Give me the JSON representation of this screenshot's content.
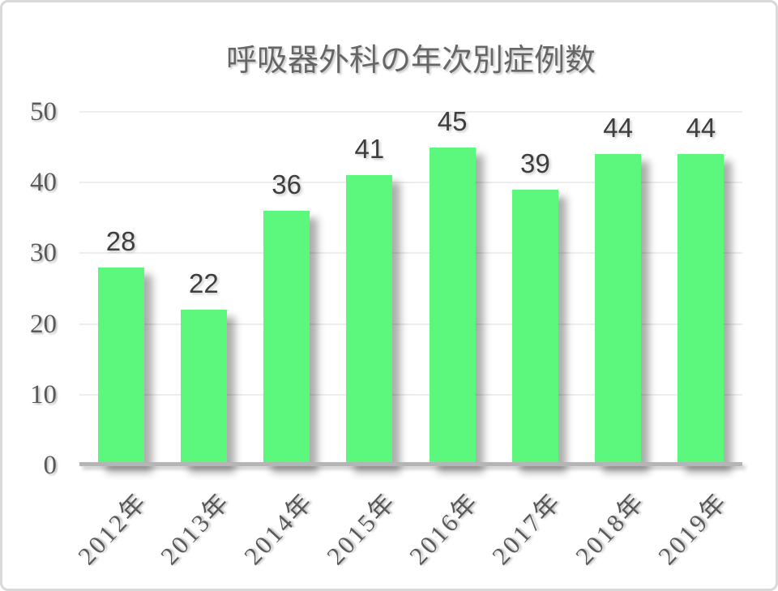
{
  "chart_data": {
    "type": "bar",
    "title": "呼吸器外科の年次別症例数",
    "categories": [
      "2012年",
      "2013年",
      "2014年",
      "2015年",
      "2016年",
      "2017年",
      "2018年",
      "2019年"
    ],
    "values": [
      28,
      22,
      36,
      41,
      45,
      39,
      44,
      44
    ],
    "xlabel": "",
    "ylabel": "",
    "ylim": [
      0,
      50
    ],
    "yticks": [
      0,
      10,
      20,
      30,
      40,
      50
    ],
    "grid": true,
    "legend_position": "none",
    "colors": {
      "bar": "#5bf87d",
      "bar_label_text": "#3e3e3e",
      "axis_text": "#595959",
      "title_text": "#666666",
      "gridline": "#ededed",
      "axis_line": "#b5b5b5",
      "frame_border": "#d9d9d9",
      "background": "#ffffff"
    }
  }
}
